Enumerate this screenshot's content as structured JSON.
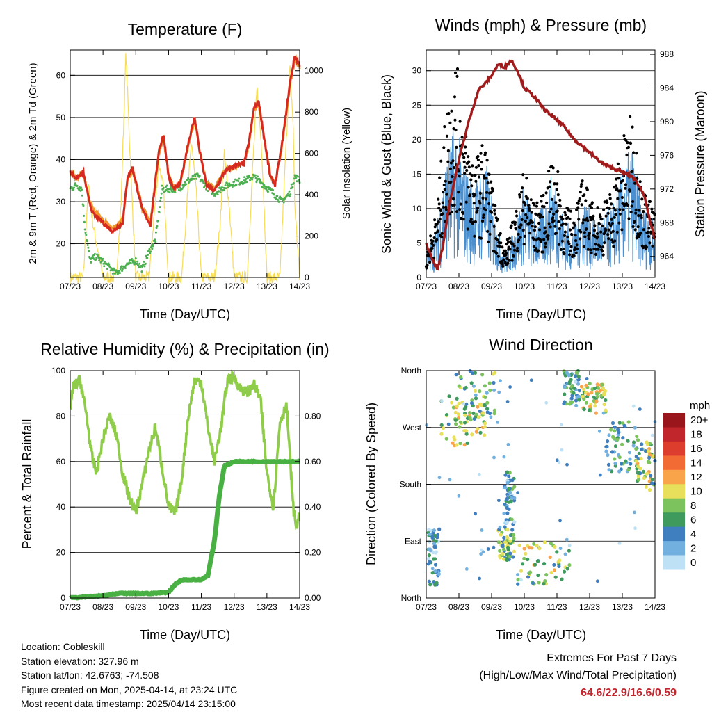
{
  "x_ticks": [
    "07/23",
    "08/23",
    "09/23",
    "10/23",
    "11/23",
    "12/23",
    "13/23",
    "14/23"
  ],
  "temperature": {
    "title": "Temperature (F)",
    "xlabel": "Time (Day/UTC)",
    "ylabel_left": "2m & 9m T (Red, Orange) & 2m Td (Green)",
    "ylabel_right": "Solar Insolation (Yellow)"
  },
  "winds": {
    "title": "Winds (mph) & Pressure (mb)",
    "xlabel": "Time (Day/UTC)",
    "ylabel_left": "Sonic Wind & Gust (Blue, Black)",
    "ylabel_right": "Station Pressure (Maroon)"
  },
  "humidity": {
    "title": "Relative Humidity (%) & Precipitation (in)",
    "xlabel": "Time (Day/UTC)",
    "ylabel_left": "Percent & Total Rainfall"
  },
  "direction": {
    "title": "Wind Direction",
    "xlabel": "Time (Day/UTC)",
    "ylabel_left": "Direction (Colored By Speed)"
  },
  "colorbar": {
    "unit": "mph",
    "labels": [
      "20+",
      "18",
      "16",
      "14",
      "12",
      "10",
      "8",
      "6",
      "4",
      "2",
      "0"
    ],
    "colors": [
      "#99161c",
      "#c0262c",
      "#dd3d2d",
      "#f26b34",
      "#f9a44a",
      "#e8e05a",
      "#7cc35e",
      "#3f9a5e",
      "#3f7fbf",
      "#72b0e0",
      "#bfe1f5"
    ]
  },
  "colors": {
    "temp_2m": "#d42a20",
    "temp_9m": "#f0932a",
    "dewpoint": "#4caf50",
    "solar": "#f7dc5a",
    "wind": "#4a90d0",
    "gust": "#000000",
    "pressure": "#a01c1c",
    "rh": "#8fcc4a",
    "precip": "#49b043",
    "extremes": "#c0262c"
  },
  "info": {
    "location": "Location: Cobleskill",
    "elevation": "Station elevation: 327.96 m",
    "latlon": "Station lat/lon: 42.6763; -74.508",
    "created": "Figure created on Mon, 2025-04-14, at 23:24 UTC",
    "recent": "Most recent data timestamp: 2025/04/14 23:15:00"
  },
  "extremes": {
    "line1": "Extremes For Past 7 Days",
    "line2": "(High/Low/Max Wind/Total Precipitation)",
    "values": "64.6/22.9/16.6/0.59"
  },
  "chart_data": [
    {
      "type": "line",
      "title": "Temperature (F)",
      "xlabel": "Time (Day/UTC)",
      "ylabel": "2m & 9m T (Red, Orange) & 2m Td (Green)",
      "y2label": "Solar Insolation (Yellow)",
      "ylim": [
        12,
        66
      ],
      "y2lim": [
        0,
        1100
      ],
      "yticks": [
        20,
        30,
        40,
        50,
        60
      ],
      "y2ticks": [
        0,
        200,
        400,
        600,
        800,
        1000
      ],
      "xlim": [
        0,
        7
      ],
      "grid": true,
      "series": [
        {
          "name": "2m T",
          "x": [
            0,
            0.2,
            0.4,
            0.55,
            0.7,
            1.0,
            1.3,
            1.6,
            1.75,
            1.9,
            2.2,
            2.45,
            2.7,
            2.85,
            3.0,
            3.15,
            3.35,
            3.6,
            3.8,
            3.95,
            4.15,
            4.4,
            4.7,
            5.0,
            5.3,
            5.45,
            5.6,
            5.75,
            5.9,
            6.1,
            6.25,
            6.45,
            6.7,
            6.85,
            7.0
          ],
          "y": [
            37,
            35.5,
            37,
            31,
            27,
            25,
            23,
            25,
            36,
            38,
            28,
            24.5,
            42,
            46,
            36,
            33,
            34,
            44,
            50,
            42,
            34,
            32.5,
            37,
            38.5,
            39,
            44,
            52,
            54,
            46,
            36,
            34,
            43,
            58,
            64.6,
            62.5
          ]
        },
        {
          "name": "9m T",
          "x": [
            0,
            0.2,
            0.4,
            0.55,
            0.7,
            1.0,
            1.3,
            1.6,
            1.75,
            1.9,
            2.2,
            2.45,
            2.7,
            2.85,
            3.0,
            3.15,
            3.35,
            3.6,
            3.8,
            3.95,
            4.15,
            4.4,
            4.7,
            5.0,
            5.3,
            5.45,
            5.6,
            5.75,
            5.9,
            6.1,
            6.25,
            6.45,
            6.7,
            6.85,
            7.0
          ],
          "y": [
            37,
            35.5,
            37,
            31.5,
            28,
            25.5,
            23.5,
            25.5,
            35.5,
            37.5,
            28.5,
            25,
            41.5,
            45.5,
            36,
            33.5,
            34,
            43.5,
            49.5,
            42,
            34.5,
            33,
            37,
            38.5,
            39,
            43.5,
            51.5,
            53.5,
            45.5,
            36.5,
            34.5,
            42.5,
            57.5,
            64,
            62
          ]
        },
        {
          "name": "2m Td",
          "x": [
            0,
            0.2,
            0.35,
            0.45,
            0.6,
            0.8,
            1.1,
            1.4,
            1.7,
            2.0,
            2.2,
            2.4,
            2.6,
            2.8,
            3.0,
            3.3,
            3.6,
            3.9,
            4.1,
            4.4,
            4.7,
            5.0,
            5.3,
            5.6,
            5.9,
            6.2,
            6.45,
            6.7,
            6.85,
            7.0
          ],
          "y": [
            33,
            34,
            33,
            24,
            16,
            17,
            15,
            13,
            15,
            16,
            14,
            18,
            21,
            33,
            33,
            33,
            35,
            36,
            34,
            32,
            33.5,
            34.5,
            35,
            36,
            34,
            32,
            30,
            32,
            36,
            35
          ]
        },
        {
          "name": "Solar Insolation",
          "axis": "right",
          "x": [
            0,
            0.4,
            0.55,
            0.7,
            1.0,
            1.4,
            1.55,
            1.7,
            1.85,
            2.0,
            2.4,
            2.55,
            2.7,
            2.85,
            3.0,
            3.4,
            3.55,
            3.7,
            3.85,
            4.0,
            4.4,
            4.55,
            4.7,
            4.85,
            5.0,
            5.4,
            5.55,
            5.7,
            5.85,
            6.0,
            6.4,
            6.55,
            6.7,
            6.8,
            6.85,
            7.0
          ],
          "y": [
            0,
            0,
            450,
            250,
            0,
            0,
            350,
            1090,
            500,
            0,
            0,
            280,
            560,
            420,
            0,
            0,
            330,
            660,
            400,
            0,
            0,
            210,
            600,
            350,
            0,
            0,
            480,
            920,
            600,
            0,
            0,
            520,
            1020,
            750,
            350,
            0
          ]
        }
      ]
    },
    {
      "type": "scatter",
      "title": "Winds (mph) & Pressure (mb)",
      "xlabel": "Time (Day/UTC)",
      "ylabel": "Sonic Wind & Gust (Blue, Black)",
      "y2label": "Station Pressure (Maroon)",
      "ylim": [
        0,
        33
      ],
      "y2lim": [
        961.5,
        988.5
      ],
      "yticks": [
        0,
        5,
        10,
        15,
        20,
        25,
        30
      ],
      "y2ticks": [
        964,
        968,
        972,
        976,
        980,
        984,
        988
      ],
      "xlim": [
        0,
        7
      ],
      "grid": true,
      "series": [
        {
          "name": "Sonic Wind",
          "x": [
            0,
            0.3,
            0.6,
            0.9,
            1.2,
            1.5,
            1.8,
            2.1,
            2.4,
            2.7,
            3.0,
            3.3,
            3.6,
            3.9,
            4.2,
            4.5,
            4.8,
            5.1,
            5.4,
            5.7,
            6.0,
            6.3,
            6.6,
            6.9,
            7.0
          ],
          "y": [
            2,
            4,
            10,
            13,
            9,
            8,
            10,
            5,
            2,
            4,
            8,
            5,
            6,
            9,
            5,
            4,
            7,
            5,
            5,
            6,
            9,
            11,
            6,
            5,
            4
          ]
        },
        {
          "name": "Gust",
          "x": [
            0,
            0.3,
            0.6,
            0.9,
            1.2,
            1.5,
            1.8,
            2.1,
            2.4,
            2.7,
            3.0,
            3.3,
            3.6,
            3.9,
            4.2,
            4.5,
            4.8,
            5.1,
            5.4,
            5.7,
            6.0,
            6.3,
            6.6,
            6.9,
            7.0
          ],
          "y": [
            3,
            7,
            18,
            24,
            16,
            13,
            15,
            8,
            3,
            7,
            12,
            8,
            9,
            14,
            8,
            7,
            11,
            8,
            8,
            10,
            15,
            18,
            10,
            8,
            7
          ]
        },
        {
          "name": "Station Pressure",
          "axis": "right",
          "x": [
            0,
            0.2,
            0.35,
            0.5,
            0.7,
            1.0,
            1.3,
            1.6,
            1.8,
            2.0,
            2.2,
            2.4,
            2.6,
            2.8,
            3.0,
            3.3,
            3.6,
            3.9,
            4.2,
            4.5,
            4.8,
            5.1,
            5.4,
            5.7,
            6.0,
            6.3,
            6.5,
            6.7,
            6.85,
            7.0
          ],
          "y": [
            965.5,
            963.5,
            962.5,
            965,
            970,
            975.5,
            980,
            983.8,
            984.5,
            985.5,
            986.8,
            986.5,
            987.3,
            986,
            984,
            983,
            981.5,
            980.5,
            979.5,
            978,
            977,
            976,
            975,
            974.5,
            974,
            973.5,
            972.5,
            971,
            968,
            966
          ]
        }
      ]
    },
    {
      "type": "line",
      "title": "Relative Humidity (%) & Precipitation (in)",
      "xlabel": "Time (Day/UTC)",
      "ylabel": "Percent & Total Rainfall",
      "ylim": [
        0,
        100
      ],
      "y2lim": [
        0,
        1.0
      ],
      "yticks": [
        0,
        20,
        40,
        60,
        80,
        100
      ],
      "y2ticks": [
        0.0,
        0.2,
        0.4,
        0.6,
        0.8
      ],
      "y2ticklabels": [
        "0.00",
        "0.20",
        "0.40",
        "0.60",
        "0.80"
      ],
      "xlim": [
        0,
        7
      ],
      "grid": true,
      "series": [
        {
          "name": "Relative Humidity",
          "x": [
            0,
            0.1,
            0.3,
            0.5,
            0.65,
            0.8,
            1.0,
            1.2,
            1.4,
            1.6,
            1.8,
            2.0,
            2.2,
            2.4,
            2.6,
            2.8,
            3.0,
            3.2,
            3.4,
            3.6,
            3.8,
            4.0,
            4.2,
            4.4,
            4.6,
            4.8,
            5.0,
            5.2,
            5.4,
            5.6,
            5.8,
            6.0,
            6.2,
            6.4,
            6.6,
            6.8,
            6.9,
            7.0
          ],
          "y": [
            84,
            93,
            96,
            80,
            63,
            55,
            70,
            80,
            72,
            55,
            44,
            38,
            50,
            65,
            75,
            58,
            40,
            37,
            52,
            80,
            96,
            95,
            75,
            60,
            75,
            96,
            97,
            92,
            90,
            94,
            88,
            55,
            40,
            78,
            85,
            40,
            31,
            37
          ]
        },
        {
          "name": "Total Rainfall",
          "axis": "right",
          "x": [
            0,
            0.5,
            1.0,
            1.5,
            2.0,
            2.5,
            3.0,
            3.2,
            3.4,
            3.7,
            4.0,
            4.2,
            4.4,
            4.55,
            4.7,
            5.0,
            5.5,
            6.0,
            6.5,
            7.0
          ],
          "y": [
            0.0,
            0.005,
            0.01,
            0.02,
            0.02,
            0.02,
            0.025,
            0.06,
            0.08,
            0.08,
            0.08,
            0.1,
            0.25,
            0.45,
            0.58,
            0.6,
            0.6,
            0.6,
            0.6,
            0.6
          ]
        }
      ]
    },
    {
      "type": "scatter",
      "title": "Wind Direction",
      "xlabel": "Time (Day/UTC)",
      "ylabel": "Direction (Colored By Speed)",
      "ylim": [
        0,
        360
      ],
      "yticks": [
        0,
        90,
        180,
        270,
        360
      ],
      "yticklabels": [
        "North",
        "East",
        "South",
        "West",
        "North"
      ],
      "xlim": [
        0,
        7
      ],
      "grid": true,
      "colorbar": {
        "label": "mph",
        "levels": [
          "0",
          "2",
          "4",
          "6",
          "8",
          "10",
          "12",
          "14",
          "16",
          "18",
          "20+"
        ]
      },
      "clusters": [
        {
          "x": [
            0.05,
            0.4
          ],
          "y": [
            20,
            110
          ],
          "speed": 3
        },
        {
          "x": [
            0.4,
            1.8
          ],
          "y": [
            240,
            320
          ],
          "speed": 9
        },
        {
          "x": [
            0.9,
            2.1
          ],
          "y": [
            280,
            360
          ],
          "speed": 6
        },
        {
          "x": [
            2.2,
            2.7
          ],
          "y": [
            60,
            110
          ],
          "speed": 7
        },
        {
          "x": [
            2.4,
            2.7
          ],
          "y": [
            110,
            200
          ],
          "speed": 4
        },
        {
          "x": [
            2.8,
            4.4
          ],
          "y": [
            20,
            90
          ],
          "speed": 8
        },
        {
          "x": [
            4.2,
            4.7
          ],
          "y": [
            300,
            360
          ],
          "speed": 4
        },
        {
          "x": [
            4.7,
            5.5
          ],
          "y": [
            290,
            340
          ],
          "speed": 9
        },
        {
          "x": [
            5.5,
            6.5
          ],
          "y": [
            200,
            280
          ],
          "speed": 5
        },
        {
          "x": [
            6.4,
            7.0
          ],
          "y": [
            170,
            250
          ],
          "speed": 8
        }
      ]
    }
  ]
}
